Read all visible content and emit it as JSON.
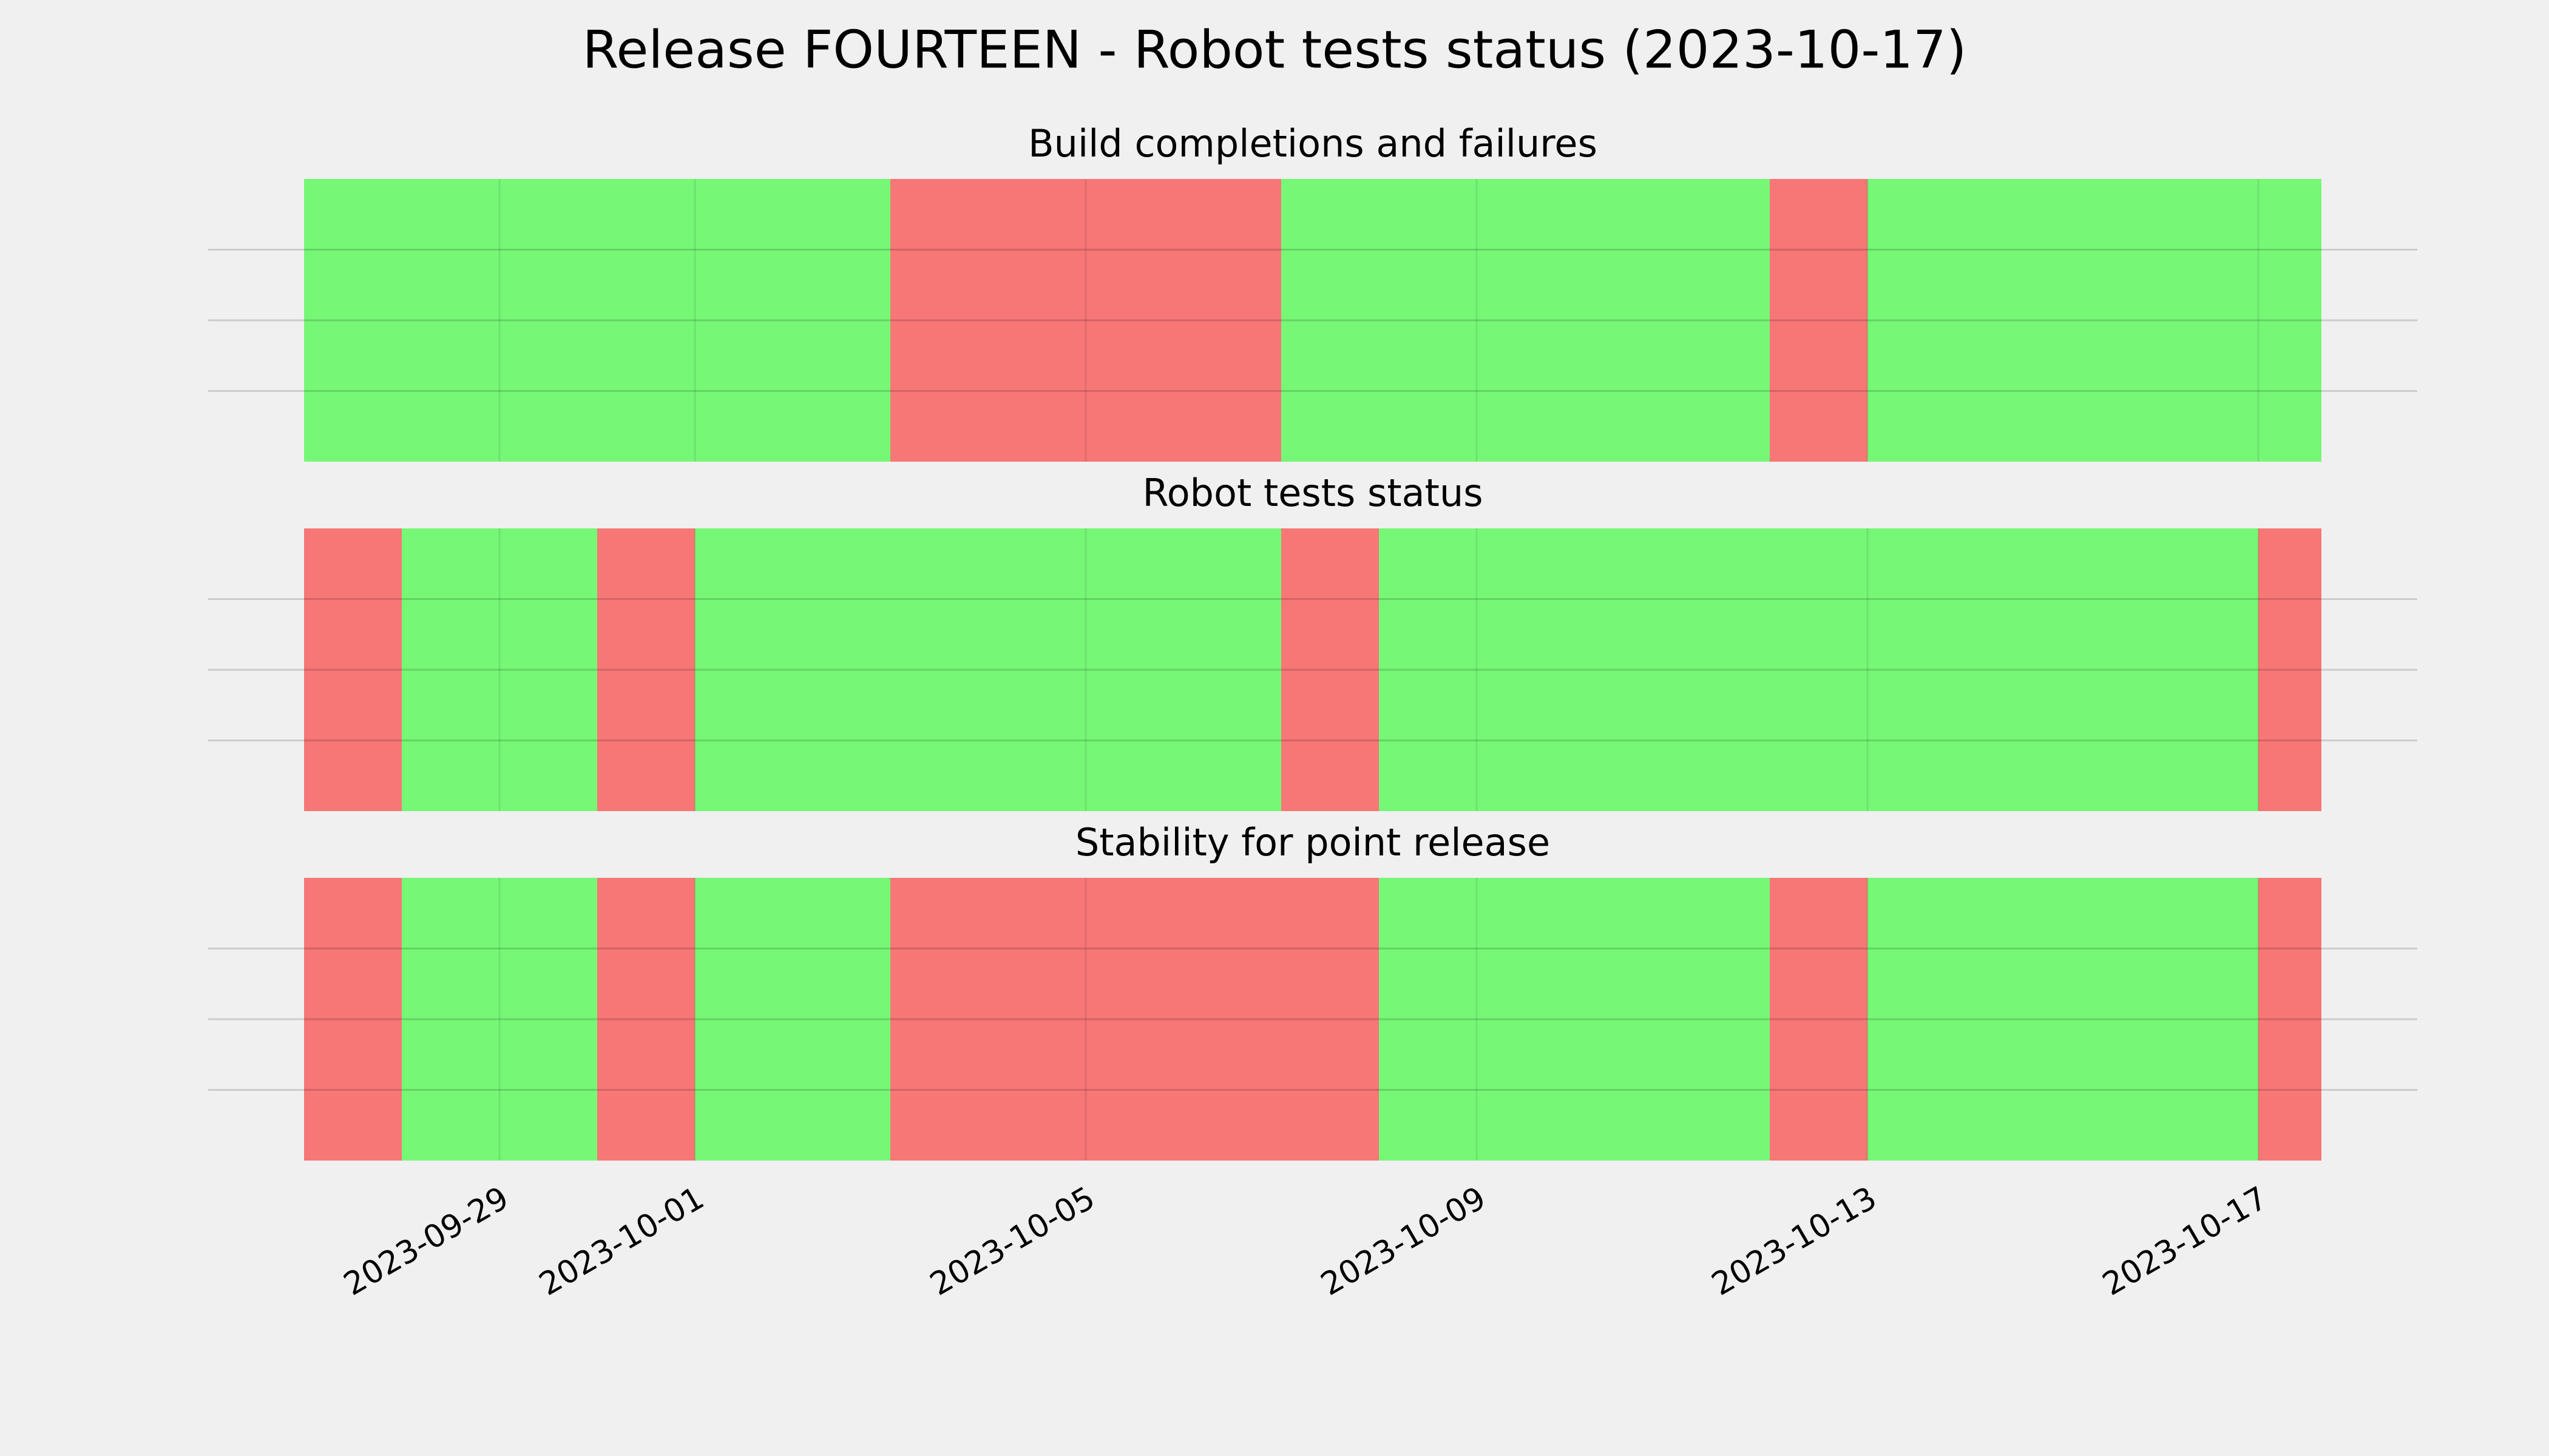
{
  "title": "Release FOURTEEN - Robot tests status (2023-10-17)",
  "chart_data": [
    {
      "type": "timeline",
      "title": "Build completions and failures",
      "x": [
        "2023-09-27",
        "2023-10-03",
        "2023-10-07",
        "2023-10-12",
        "2023-10-13"
      ],
      "colors": [
        "#76f776",
        "#f77676",
        "#76f776",
        "#f77676",
        "#76f776"
      ],
      "xlim": [
        "2023-09-27",
        "2023-10-17T15:30:00Z"
      ],
      "xticks": [
        "2023-09-29",
        "2023-10-01",
        "2023-10-05",
        "2023-10-09",
        "2023-10-13",
        "2023-10-17"
      ],
      "ylim": [
        0,
        1
      ],
      "yticks": [
        0.25,
        0.5,
        0.75
      ],
      "grid": true
    },
    {
      "type": "timeline",
      "title": "Robot tests status",
      "x": [
        "2023-09-27",
        "2023-09-28",
        "2023-09-30",
        "2023-10-01",
        "2023-10-07",
        "2023-10-08",
        "2023-10-17"
      ],
      "colors": [
        "#f77676",
        "#76f776",
        "#f77676",
        "#76f776",
        "#f77676",
        "#76f776",
        "#f77676"
      ],
      "xlim": [
        "2023-09-27",
        "2023-10-17T15:30:00Z"
      ],
      "xticks": [
        "2023-09-29",
        "2023-10-01",
        "2023-10-05",
        "2023-10-09",
        "2023-10-13",
        "2023-10-17"
      ],
      "ylim": [
        0,
        1
      ],
      "yticks": [
        0.25,
        0.5,
        0.75
      ],
      "grid": true
    },
    {
      "type": "timeline",
      "title": "Stability for point release",
      "x": [
        "2023-09-27",
        "2023-09-28",
        "2023-09-30",
        "2023-10-01",
        "2023-10-03",
        "2023-10-08",
        "2023-10-12",
        "2023-10-13",
        "2023-10-17"
      ],
      "colors": [
        "#f77676",
        "#76f776",
        "#f77676",
        "#76f776",
        "#f77676",
        "#76f776",
        "#f77676",
        "#76f776",
        "#f77676"
      ],
      "xlim": [
        "2023-09-27",
        "2023-10-17T15:30:00Z"
      ],
      "xticks": [
        "2023-09-29",
        "2023-10-01",
        "2023-10-05",
        "2023-10-09",
        "2023-10-13",
        "2023-10-17"
      ],
      "ylim": [
        0,
        1
      ],
      "yticks": [
        0.25,
        0.5,
        0.75
      ],
      "grid": true
    }
  ]
}
